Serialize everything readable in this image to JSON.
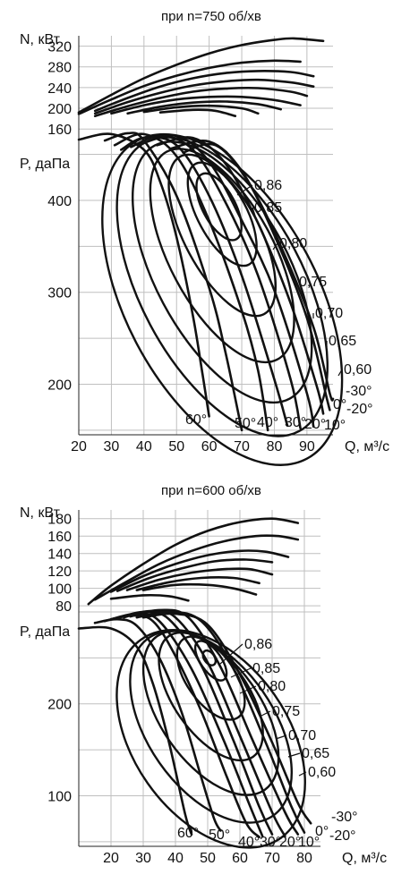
{
  "chart_data": [
    {
      "type": "line",
      "title": "при n=750 об/хв",
      "xlabel": "Q, м³/с",
      "x_ticks": [
        20,
        30,
        40,
        50,
        60,
        70,
        80,
        90
      ],
      "xlim": [
        20,
        98
      ],
      "power": {
        "ylabel": "N, кВт",
        "ylim": [
          150,
          340
        ],
        "y_ticks": [
          160,
          200,
          240,
          280,
          320
        ],
        "series": [
          {
            "x": [
              20,
              30,
              40,
              50,
              60,
              70,
              80,
              86,
              95
            ],
            "y": [
              192,
              226,
              258,
              284,
              306,
              322,
              332,
              335,
              330
            ]
          },
          {
            "x": [
              20,
              30,
              40,
              50,
              60,
              70,
              80,
              88
            ],
            "y": [
              189,
              217,
              243,
              263,
              278,
              288,
              292,
              290
            ]
          },
          {
            "x": [
              25,
              35,
              45,
              55,
              65,
              75,
              85,
              92
            ],
            "y": [
              195,
              220,
              242,
              258,
              268,
              272,
              270,
              262
            ]
          },
          {
            "x": [
              25,
              35,
              45,
              55,
              65,
              75,
              85,
              92
            ],
            "y": [
              190,
              212,
              230,
              244,
              252,
              255,
              250,
              242
            ]
          },
          {
            "x": [
              25,
              35,
              45,
              55,
              65,
              75,
              85,
              90
            ],
            "y": [
              185,
              204,
              220,
              232,
              238,
              239,
              232,
              224
            ]
          },
          {
            "x": [
              30,
              40,
              50,
              60,
              70,
              80,
              88
            ],
            "y": [
              190,
              206,
              217,
              222,
              222,
              216,
              206
            ]
          },
          {
            "x": [
              35,
              45,
              55,
              65,
              75,
              82
            ],
            "y": [
              190,
              203,
              211,
              213,
              208,
              198
            ]
          },
          {
            "x": [
              40,
              50,
              60,
              70,
              75
            ],
            "y": [
              193,
              202,
              205,
              200,
              190
            ]
          },
          {
            "x": [
              45,
              55,
              62,
              68
            ],
            "y": [
              192,
              197,
              195,
              185
            ]
          }
        ]
      },
      "pressure": {
        "ylabel": "P, даПа",
        "ylim": [
          145,
          470
        ],
        "y_ticks": [
          200,
          300,
          400
        ],
        "series": [
          {
            "label": "60°",
            "x": [
              20,
              30,
              40,
              45,
              50,
              55,
              58,
              60
            ],
            "y": [
              466,
              472,
              455,
              420,
              360,
              275,
              210,
              165
            ]
          },
          {
            "label": "50°",
            "x": [
              28,
              35,
              40,
              50,
              60,
              65,
              70
            ],
            "y": [
              465,
              473,
              465,
              405,
              305,
              235,
              150
            ]
          },
          {
            "label": "40°",
            "x": [
              31,
              40,
              50,
              60,
              70,
              75,
              78
            ],
            "y": [
              460,
              472,
              448,
              378,
              280,
              215,
              150
            ]
          },
          {
            "label": "30°",
            "x": [
              33,
              40,
              50,
              60,
              70,
              80,
              84
            ],
            "y": [
              455,
              468,
              460,
              405,
              318,
              205,
              155
            ]
          },
          {
            "label": "20°",
            "x": [
              36,
              45,
              55,
              65,
              75,
              85,
              88
            ],
            "y": [
              458,
              470,
              455,
              398,
              318,
              205,
              152
            ]
          },
          {
            "label": "10°",
            "x": [
              38,
              50,
              60,
              70,
              80,
              90,
              92
            ],
            "y": [
              460,
              470,
              442,
              378,
              302,
              190,
              154
            ]
          },
          {
            "label": "0°",
            "x": [
              44,
              55,
              65,
              75,
              85,
              93,
              95
            ],
            "y": [
              460,
              468,
              440,
              375,
              288,
              198,
              168
            ]
          },
          {
            "label": "-20°",
            "x": [
              48,
              60,
              70,
              80,
              90,
              96,
              97
            ],
            "y": [
              456,
              464,
              432,
              362,
              272,
              186,
              172
            ]
          },
          {
            "label": "-30°",
            "x": [
              52,
              62,
              72,
              82,
              92,
              97,
              98
            ],
            "y": [
              452,
              460,
              420,
              350,
              262,
              190,
              184
            ]
          }
        ],
        "efficiency": [
          {
            "label": "0,86",
            "cx": 63,
            "cy": 393,
            "rx": 5,
            "ry": 40
          },
          {
            "label": "0,85",
            "cx": 64,
            "cy": 385,
            "rx": 7.5,
            "ry": 62
          },
          {
            "label": "0,80",
            "cx": 64,
            "cy": 362,
            "rx": 11.5,
            "ry": 97
          },
          {
            "label": "0,75",
            "cx": 64,
            "cy": 340,
            "rx": 16,
            "ry": 128
          },
          {
            "label": "0,70",
            "cx": 64,
            "cy": 322,
            "rx": 20.5,
            "ry": 156
          },
          {
            "label": "0,65",
            "cx": 64,
            "cy": 306,
            "rx": 25,
            "ry": 178
          },
          {
            "label": "0,60",
            "cx": 64,
            "cy": 292,
            "rx": 29.5,
            "ry": 196
          }
        ]
      },
      "angle_labels": [
        "60°",
        "50°",
        "40°",
        "30°",
        "20°",
        "10°",
        "0°",
        "-20°",
        "-30°"
      ]
    },
    {
      "type": "line",
      "title": "при n=600 об/хв",
      "xlabel": "Q, м³/с",
      "x_ticks": [
        20,
        30,
        40,
        50,
        60,
        70,
        80
      ],
      "xlim": [
        10,
        85
      ],
      "power": {
        "ylabel": "N, кВт",
        "ylim": [
          75,
          190
        ],
        "y_ticks": [
          80,
          100,
          120,
          140,
          160,
          180
        ],
        "series": [
          {
            "x": [
              13,
              20,
              30,
              40,
              50,
              60,
              70,
              78
            ],
            "y": [
              82,
              103,
              128,
              150,
              166,
              176,
              180,
              175
            ]
          },
          {
            "x": [
              15,
              25,
              35,
              45,
              55,
              65,
              72,
              78
            ],
            "y": [
              87,
              108,
              128,
              143,
              154,
              160,
              160,
              156
            ]
          },
          {
            "x": [
              20,
              30,
              40,
              50,
              60,
              68,
              75
            ],
            "y": [
              96,
              114,
              128,
              138,
              143,
              142,
              136
            ]
          },
          {
            "x": [
              22,
              32,
              42,
              52,
              62,
              70
            ],
            "y": [
              97,
              112,
              123,
              131,
              133,
              130
            ]
          },
          {
            "x": [
              25,
              35,
              45,
              55,
              63,
              70
            ],
            "y": [
              98,
              110,
              118,
              122,
              122,
              116
            ]
          },
          {
            "x": [
              28,
              38,
              48,
              58,
              66
            ],
            "y": [
              98,
              107,
              112,
              112,
              106
            ]
          },
          {
            "x": [
              30,
              40,
              50,
              58,
              65
            ],
            "y": [
              98,
              104,
              104,
              100,
              93
            ]
          },
          {
            "x": [
              20,
              30,
              38,
              44
            ],
            "y": [
              88,
              92,
              91,
              86
            ]
          }
        ]
      },
      "pressure": {
        "ylabel": "P, даПа",
        "ylim": [
          45,
          300
        ],
        "y_ticks": [
          100,
          200
        ],
        "series": [
          {
            "label": "60°",
            "x": [
              10,
              20,
              28,
              33,
              38,
              43,
              45
            ],
            "y": [
              282,
              282,
              262,
              222,
              158,
              80,
              58
            ]
          },
          {
            "label": "50°",
            "x": [
              15,
              22,
              28,
              35,
              42,
              48,
              52,
              54
            ],
            "y": [
              288,
              292,
              285,
              250,
              190,
              120,
              75,
              62
            ]
          },
          {
            "label": "40°",
            "x": [
              18,
              26,
              33,
              40,
              48,
              56,
              62,
              66
            ],
            "y": [
              290,
              296,
              290,
              252,
              192,
              120,
              70,
              55
            ]
          },
          {
            "label": "30°",
            "x": [
              20,
              28,
              35,
              45,
              55,
              63,
              67
            ],
            "y": [
              292,
              298,
              290,
              238,
              160,
              90,
              56
            ]
          },
          {
            "label": "20°",
            "x": [
              22,
              30,
              38,
              48,
              58,
              66,
              70
            ],
            "y": [
              293,
              300,
              292,
              242,
              160,
              88,
              58
            ]
          },
          {
            "label": "10°",
            "x": [
              24,
              32,
              40,
              50,
              60,
              70,
              74
            ],
            "y": [
              294,
              301,
              294,
              245,
              165,
              82,
              56
            ]
          },
          {
            "label": "0°",
            "x": [
              26,
              35,
              44,
              54,
              64,
              74,
              78
            ],
            "y": [
              295,
              302,
              294,
              240,
              160,
              82,
              58
            ]
          },
          {
            "label": "-20°",
            "x": [
              28,
              38,
              48,
              58,
              68,
              76,
              80
            ],
            "y": [
              294,
              300,
              290,
              238,
              158,
              88,
              60
            ]
          },
          {
            "label": "-30°",
            "x": [
              30,
              40,
              50,
              60,
              70,
              78,
              82
            ],
            "y": [
              294,
              298,
              286,
              232,
              158,
              92,
              70
            ]
          }
        ],
        "efficiency": [
          {
            "label": "0,86",
            "cx": 50.5,
            "cy": 250,
            "rx": 1.6,
            "ry": 9
          },
          {
            "label": "0,85",
            "cx": 51,
            "cy": 247,
            "rx": 3.2,
            "ry": 25
          },
          {
            "label": "0,80",
            "cx": 51,
            "cy": 228,
            "rx": 7.5,
            "ry": 52
          },
          {
            "label": "0,75",
            "cx": 51,
            "cy": 208,
            "rx": 11.5,
            "ry": 80
          },
          {
            "label": "0,70",
            "cx": 51,
            "cy": 190,
            "rx": 15.5,
            "ry": 102
          },
          {
            "label": "0,65",
            "cx": 51,
            "cy": 175,
            "rx": 19.5,
            "ry": 118
          },
          {
            "label": "0,60",
            "cx": 51,
            "cy": 162,
            "rx": 24,
            "ry": 132
          }
        ]
      },
      "angle_labels": [
        "60°",
        "50°",
        "40°",
        "30°",
        "20°",
        "10°",
        "0°",
        "-20°",
        "-30°"
      ]
    }
  ]
}
